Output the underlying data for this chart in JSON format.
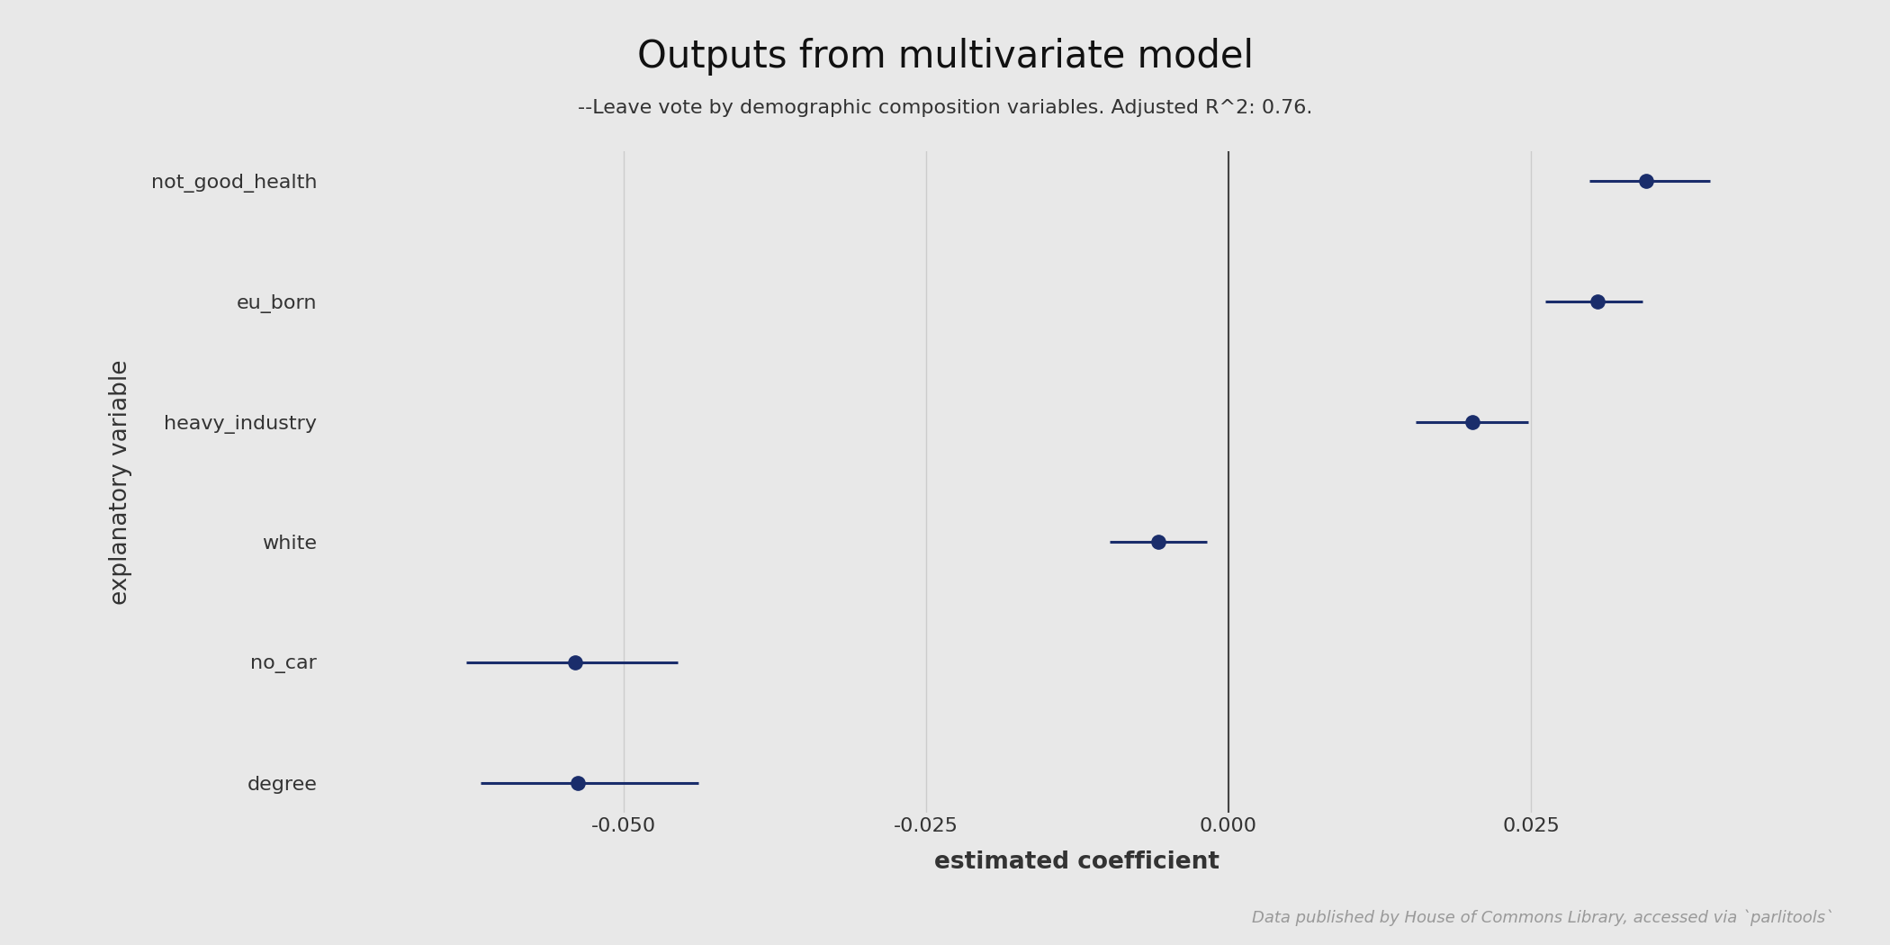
{
  "title": "Outputs from multivariate model",
  "subtitle": "--Leave vote by demographic composition variables. Adjusted R^2: 0.76.",
  "xlabel": "estimated coefficient",
  "ylabel": "explanatory variable",
  "footnote": "Data published by House of Commons Library, accessed via `parlitools`",
  "background_color": "#e8e8e8",
  "dot_color": "#1a2d6b",
  "line_color": "#1a2d6b",
  "vline_color": "#444444",
  "grid_color": "#cccccc",
  "variables": [
    "not_good_health",
    "eu_born",
    "heavy_industry",
    "white",
    "no_car",
    "degree"
  ],
  "coefficients": [
    0.0345,
    0.0305,
    0.0202,
    -0.0058,
    -0.054,
    -0.0538
  ],
  "ci_lower": [
    0.0298,
    0.0262,
    0.0155,
    -0.0098,
    -0.063,
    -0.0618
  ],
  "ci_upper": [
    0.0398,
    0.0342,
    0.0248,
    -0.0018,
    -0.0455,
    -0.0438
  ],
  "xlim": [
    -0.075,
    0.05
  ],
  "xticks": [
    -0.05,
    -0.025,
    0.0,
    0.025
  ],
  "title_fontsize": 30,
  "subtitle_fontsize": 16,
  "axis_label_fontsize": 19,
  "tick_fontsize": 16,
  "footnote_fontsize": 13
}
